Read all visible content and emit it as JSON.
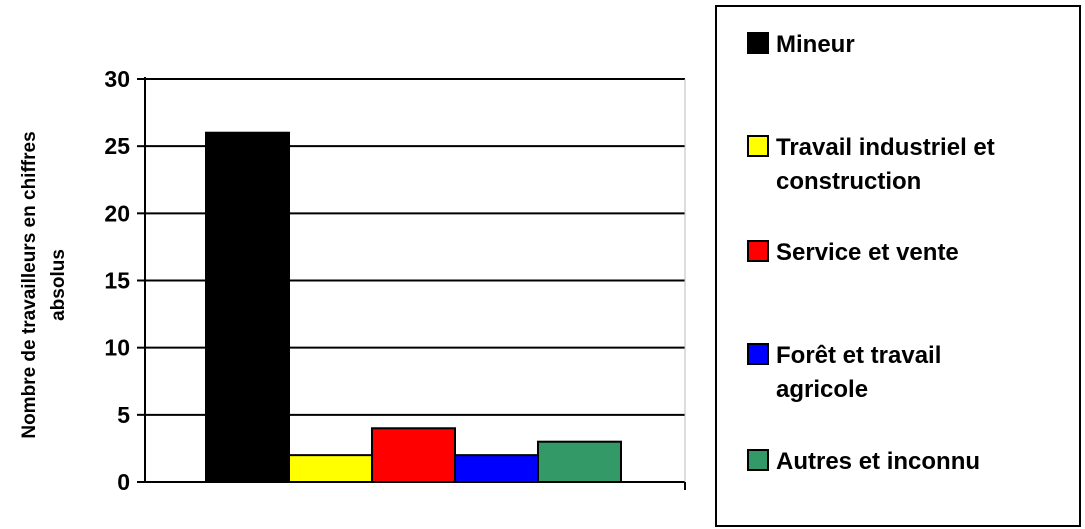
{
  "chart_data": {
    "type": "bar",
    "title": "",
    "xlabel": "",
    "ylabel_lines": [
      "Nombre de travailleurs en chiffres",
      "absolus"
    ],
    "ylim": [
      0,
      30
    ],
    "yticks": [
      0,
      5,
      10,
      15,
      20,
      25,
      30
    ],
    "grid": true,
    "legend_position": "right",
    "series": [
      {
        "name": "Mineur",
        "values": [
          26
        ],
        "color": "#000000",
        "legend_lines": [
          "Mineur"
        ]
      },
      {
        "name": "Travail industriel et construction",
        "values": [
          2
        ],
        "color": "#ffff00",
        "legend_lines": [
          "Travail industriel et",
          "construction"
        ]
      },
      {
        "name": "Service et vente",
        "values": [
          4
        ],
        "color": "#ff0000",
        "legend_lines": [
          "Service et vente"
        ]
      },
      {
        "name": "Forêt et travail agricole",
        "values": [
          2
        ],
        "color": "#0000ff",
        "legend_lines": [
          "Forêt et travail",
          "agricole"
        ]
      },
      {
        "name": "Autres et inconnu",
        "values": [
          3
        ],
        "color": "#339966",
        "legend_lines": [
          "Autres et inconnu"
        ]
      }
    ]
  }
}
